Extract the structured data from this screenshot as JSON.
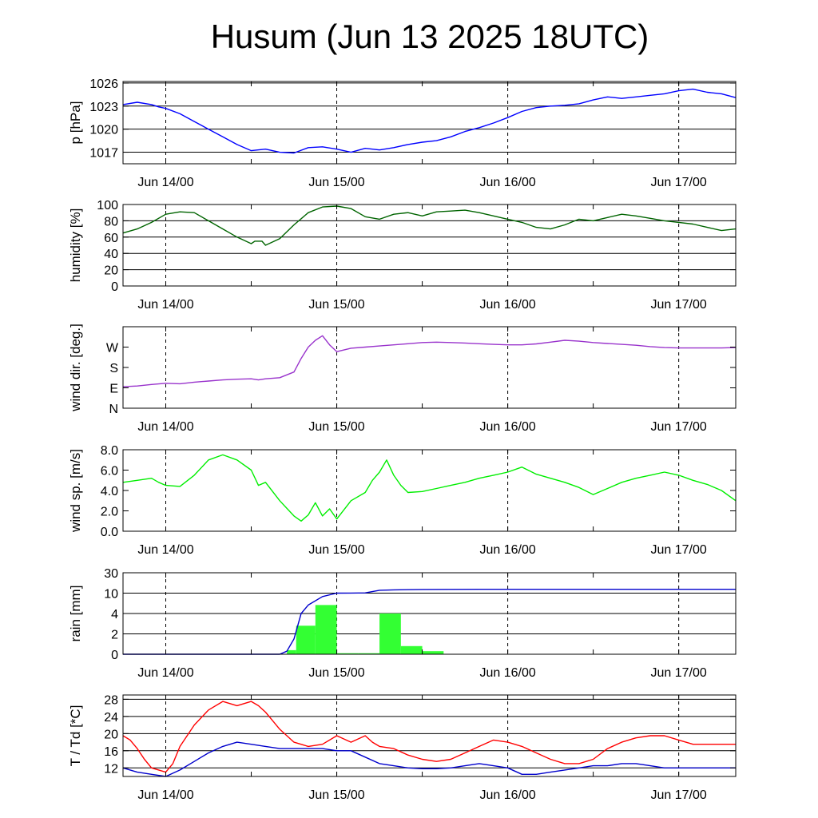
{
  "title": "Husum (Jun 13 2025 18UTC)",
  "x_tick_labels": [
    "Jun 14/00",
    "Jun 15/00",
    "Jun 16/00",
    "Jun 17/00"
  ],
  "chart_data": [
    {
      "type": "line",
      "ylabel": "p [hPa]",
      "ylim": [
        1015.5,
        1026.2
      ],
      "grid": true,
      "yticks": [
        1017,
        1020,
        1023,
        1026
      ],
      "ytick_labels": [
        "1017",
        "1020",
        "1023",
        "1026"
      ],
      "series": [
        {
          "color": "#0000ff",
          "x": [
            0,
            2,
            4,
            5,
            6,
            8,
            10,
            12,
            14,
            16,
            18,
            20,
            22,
            24,
            26,
            28,
            30,
            32,
            34,
            36,
            38,
            40,
            42,
            44,
            46,
            48,
            50,
            52,
            54,
            56,
            58,
            60,
            62,
            64,
            66,
            68,
            70,
            72,
            74,
            76,
            78,
            80,
            82,
            84,
            86
          ],
          "y": [
            1023.2,
            1023.5,
            1023.2,
            1022.9,
            1022.7,
            1022.0,
            1021.0,
            1020.0,
            1019.0,
            1018.0,
            1017.2,
            1017.4,
            1017.0,
            1016.9,
            1017.6,
            1017.7,
            1017.4,
            1017.0,
            1017.5,
            1017.3,
            1017.6,
            1018.0,
            1018.3,
            1018.5,
            1019.0,
            1019.7,
            1020.2,
            1020.8,
            1021.5,
            1022.3,
            1022.8,
            1023.0,
            1023.1,
            1023.3,
            1023.8,
            1024.2,
            1024.0,
            1024.2,
            1024.4,
            1024.6,
            1025.0,
            1025.2,
            1024.8,
            1024.6,
            1024.1
          ]
        }
      ]
    },
    {
      "type": "line",
      "ylabel": "humidity [%]",
      "ylim": [
        0,
        100
      ],
      "grid": true,
      "yticks": [
        0,
        20,
        40,
        60,
        80,
        100
      ],
      "ytick_labels": [
        "0",
        "20",
        "40",
        "60",
        "80",
        "100"
      ],
      "series": [
        {
          "color": "#006400",
          "x": [
            0,
            2,
            4,
            6,
            8,
            10,
            12,
            14,
            16,
            18,
            18.5,
            19.5,
            20,
            22,
            24,
            26,
            28,
            30,
            32,
            34,
            36,
            38,
            40,
            42,
            44,
            46,
            48,
            50,
            52,
            54,
            56,
            58,
            60,
            62,
            64,
            66,
            68,
            70,
            72,
            74,
            76,
            78,
            80,
            82,
            84,
            86
          ],
          "y": [
            65,
            70,
            78,
            88,
            91,
            90,
            80,
            70,
            60,
            52,
            55,
            55,
            50,
            58,
            75,
            90,
            97,
            98,
            95,
            85,
            82,
            88,
            90,
            86,
            91,
            92,
            93,
            90,
            86,
            82,
            78,
            72,
            70,
            75,
            82,
            80,
            84,
            88,
            86,
            83,
            80,
            78,
            76,
            72,
            68,
            70
          ]
        }
      ]
    },
    {
      "type": "line",
      "ylabel": "wind dir. [deg.]",
      "ylim": [
        0,
        360
      ],
      "grid": false,
      "yticks": [
        0,
        90,
        180,
        270
      ],
      "ytick_labels": [
        "N",
        "E",
        "S",
        "W"
      ],
      "series": [
        {
          "color": "#9933cc",
          "x": [
            0,
            2,
            4,
            6,
            8,
            10,
            12,
            14,
            16,
            18,
            19,
            20,
            22,
            24,
            25,
            26,
            27,
            28,
            29,
            30,
            32,
            34,
            36,
            38,
            40,
            42,
            44,
            46,
            48,
            50,
            52,
            54,
            56,
            58,
            60,
            62,
            64,
            66,
            68,
            70,
            72,
            74,
            76,
            78,
            80,
            82,
            84,
            86
          ],
          "y": [
            95,
            98,
            105,
            110,
            108,
            115,
            120,
            125,
            128,
            130,
            125,
            130,
            135,
            160,
            220,
            270,
            300,
            320,
            280,
            250,
            265,
            270,
            275,
            280,
            285,
            290,
            292,
            290,
            288,
            285,
            282,
            280,
            280,
            284,
            292,
            300,
            296,
            290,
            286,
            282,
            278,
            272,
            268,
            266,
            266,
            266,
            266,
            268
          ]
        }
      ]
    },
    {
      "type": "line",
      "ylabel": "wind sp. [m/s]",
      "ylim": [
        0,
        8
      ],
      "grid": false,
      "yticks": [
        0,
        2,
        4,
        6,
        8
      ],
      "ytick_labels": [
        "0.0",
        "2.0",
        "4.0",
        "6.0",
        "8.0"
      ],
      "series": [
        {
          "color": "#00ee00",
          "x": [
            0,
            2,
            4,
            5,
            6,
            8,
            10,
            12,
            14,
            16,
            18,
            19,
            20,
            22,
            24,
            25,
            26,
            27,
            28,
            29,
            30,
            32,
            34,
            35,
            36,
            37,
            38,
            39,
            40,
            42,
            44,
            46,
            48,
            50,
            52,
            54,
            56,
            58,
            60,
            62,
            64,
            66,
            68,
            70,
            72,
            74,
            76,
            78,
            80,
            82,
            84,
            86
          ],
          "y": [
            4.8,
            5.0,
            5.2,
            4.8,
            4.5,
            4.4,
            5.5,
            7.0,
            7.5,
            7.0,
            6.0,
            4.5,
            4.8,
            3.0,
            1.5,
            1.0,
            1.6,
            2.8,
            1.5,
            2.2,
            1.2,
            3.0,
            3.8,
            5.0,
            5.8,
            7.0,
            5.5,
            4.5,
            3.8,
            3.9,
            4.2,
            4.5,
            4.8,
            5.2,
            5.5,
            5.8,
            6.3,
            5.6,
            5.2,
            4.8,
            4.3,
            3.6,
            4.2,
            4.8,
            5.2,
            5.5,
            5.8,
            5.5,
            5.0,
            4.6,
            4.0,
            3.0
          ]
        }
      ]
    },
    {
      "type": "bar+line",
      "ylabel": "rain [mm]",
      "ylim": [
        0,
        30
      ],
      "grid": true,
      "yticks": [
        0,
        2,
        4,
        10,
        30
      ],
      "ytick_labels": [
        "0",
        "2",
        "4",
        "10",
        "30"
      ],
      "bars": {
        "color": "#33ff33",
        "edges": [
          0,
          3,
          6,
          9,
          12,
          15,
          18,
          21,
          23,
          24.3,
          27,
          30,
          33,
          36,
          39,
          42,
          45,
          48,
          51,
          54,
          57,
          60,
          63,
          66,
          69,
          72,
          75,
          78,
          81,
          84,
          86
        ],
        "values": [
          0,
          0,
          0,
          0,
          0,
          0,
          0,
          0,
          0.4,
          2.8,
          6.5,
          0.1,
          0.1,
          4.0,
          0.8,
          0.3,
          0,
          0,
          0,
          0,
          0,
          0,
          0,
          0,
          0,
          0,
          0,
          0,
          0,
          0
        ]
      },
      "series": [
        {
          "color": "#0000cc",
          "x": [
            0,
            22,
            23,
            24,
            25,
            26,
            28,
            30,
            32,
            34,
            36,
            38,
            42,
            50,
            60,
            70,
            80,
            86
          ],
          "y": [
            0,
            0,
            0.3,
            1.5,
            4.0,
            6.5,
            9.0,
            10.0,
            10.1,
            10.2,
            12.8,
            13.2,
            13.6,
            13.8,
            13.8,
            13.8,
            13.8,
            13.8
          ]
        }
      ]
    },
    {
      "type": "line",
      "ylabel": "T / Td [*C]",
      "ylim": [
        10,
        29
      ],
      "grid": true,
      "yticks": [
        12,
        16,
        20,
        24,
        28
      ],
      "ytick_labels": [
        "12",
        "16",
        "20",
        "24",
        "28"
      ],
      "series": [
        {
          "color": "#ff0000",
          "x": [
            0,
            1,
            2,
            3,
            4,
            5,
            6,
            7,
            8,
            10,
            12,
            14,
            16,
            18,
            19,
            20,
            21,
            22,
            24,
            26,
            28,
            30,
            32,
            34,
            35,
            36,
            38,
            40,
            42,
            44,
            46,
            48,
            50,
            52,
            54,
            56,
            58,
            60,
            62,
            64,
            66,
            68,
            70,
            72,
            74,
            76,
            78,
            80,
            82,
            84,
            86
          ],
          "y": [
            19.5,
            18.5,
            16.5,
            14.0,
            12.0,
            11.5,
            11.0,
            13.0,
            17.0,
            22.0,
            25.5,
            27.5,
            26.5,
            27.5,
            26.5,
            25.0,
            23.0,
            21.0,
            18.0,
            17.0,
            17.5,
            19.5,
            18.0,
            19.5,
            18.0,
            17.0,
            16.5,
            15.0,
            14.0,
            13.5,
            14.0,
            15.5,
            17.0,
            18.5,
            18.0,
            17.0,
            15.5,
            14.0,
            13.0,
            13.0,
            14.0,
            16.5,
            18.0,
            19.0,
            19.5,
            19.5,
            18.5,
            17.5,
            17.5,
            17.5,
            17.5
          ]
        },
        {
          "color": "#0000cc",
          "x": [
            0,
            2,
            4,
            6,
            8,
            10,
            12,
            14,
            16,
            18,
            20,
            22,
            24,
            26,
            28,
            30,
            32,
            34,
            36,
            38,
            40,
            42,
            44,
            46,
            48,
            50,
            52,
            54,
            56,
            58,
            60,
            62,
            64,
            66,
            68,
            70,
            72,
            74,
            76,
            78,
            80,
            82,
            84,
            86
          ],
          "y": [
            12.0,
            11.0,
            10.5,
            10.0,
            11.5,
            13.5,
            15.5,
            17.0,
            18.0,
            17.5,
            17.0,
            16.5,
            16.5,
            16.5,
            16.5,
            16.0,
            16.0,
            14.5,
            13.0,
            12.5,
            12.0,
            11.8,
            11.8,
            12.0,
            12.5,
            13.0,
            12.5,
            12.0,
            10.5,
            10.5,
            11.0,
            11.5,
            12.0,
            12.5,
            12.5,
            13.0,
            13.0,
            12.5,
            12.0,
            12.0,
            12.0,
            12.0,
            12.0,
            12.0
          ]
        }
      ]
    }
  ]
}
